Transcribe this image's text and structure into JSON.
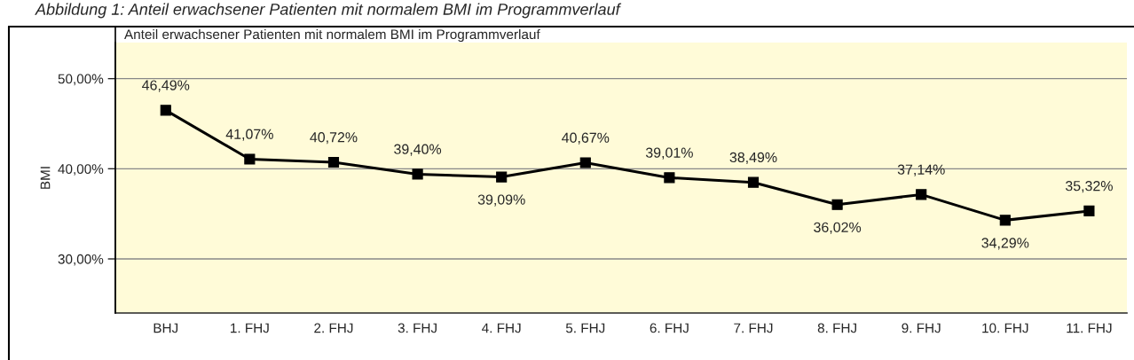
{
  "chart_data": {
    "type": "line",
    "title": "Anteil erwachsener Patienten mit normalem BMI im Programmverlauf",
    "annotations": [
      "Abbildung 1: Anteil erwachsener Patienten mit normalem BMI im Programmverlauf"
    ],
    "ylabel": "BMI",
    "categories": [
      "BHJ",
      "1. FHJ",
      "2. FHJ",
      "3. FHJ",
      "4. FHJ",
      "5. FHJ",
      "6. FHJ",
      "7. FHJ",
      "8. FHJ",
      "9. FHJ",
      "10. FHJ",
      "11. FHJ"
    ],
    "series": [
      {
        "color": "#000000",
        "values": [
          46.49,
          41.07,
          40.72,
          39.4,
          39.09,
          40.67,
          39.01,
          38.49,
          36.02,
          37.14,
          34.29,
          35.32
        ],
        "value_labels": [
          "46,49%",
          "41,07%",
          "40,72%",
          "39,40%",
          "39,09%",
          "40,67%",
          "39,01%",
          "38,49%",
          "36,02%",
          "37,14%",
          "34,29%",
          "35,32%"
        ]
      }
    ],
    "ylim": [
      24,
      54
    ],
    "yticks": [
      {
        "value": 30,
        "label": "30,00%"
      },
      {
        "value": 40,
        "label": "40,00%"
      },
      {
        "value": 50,
        "label": "50,00%"
      }
    ],
    "grid": "y",
    "marker": "square",
    "line_style": "solid",
    "legend": false
  }
}
